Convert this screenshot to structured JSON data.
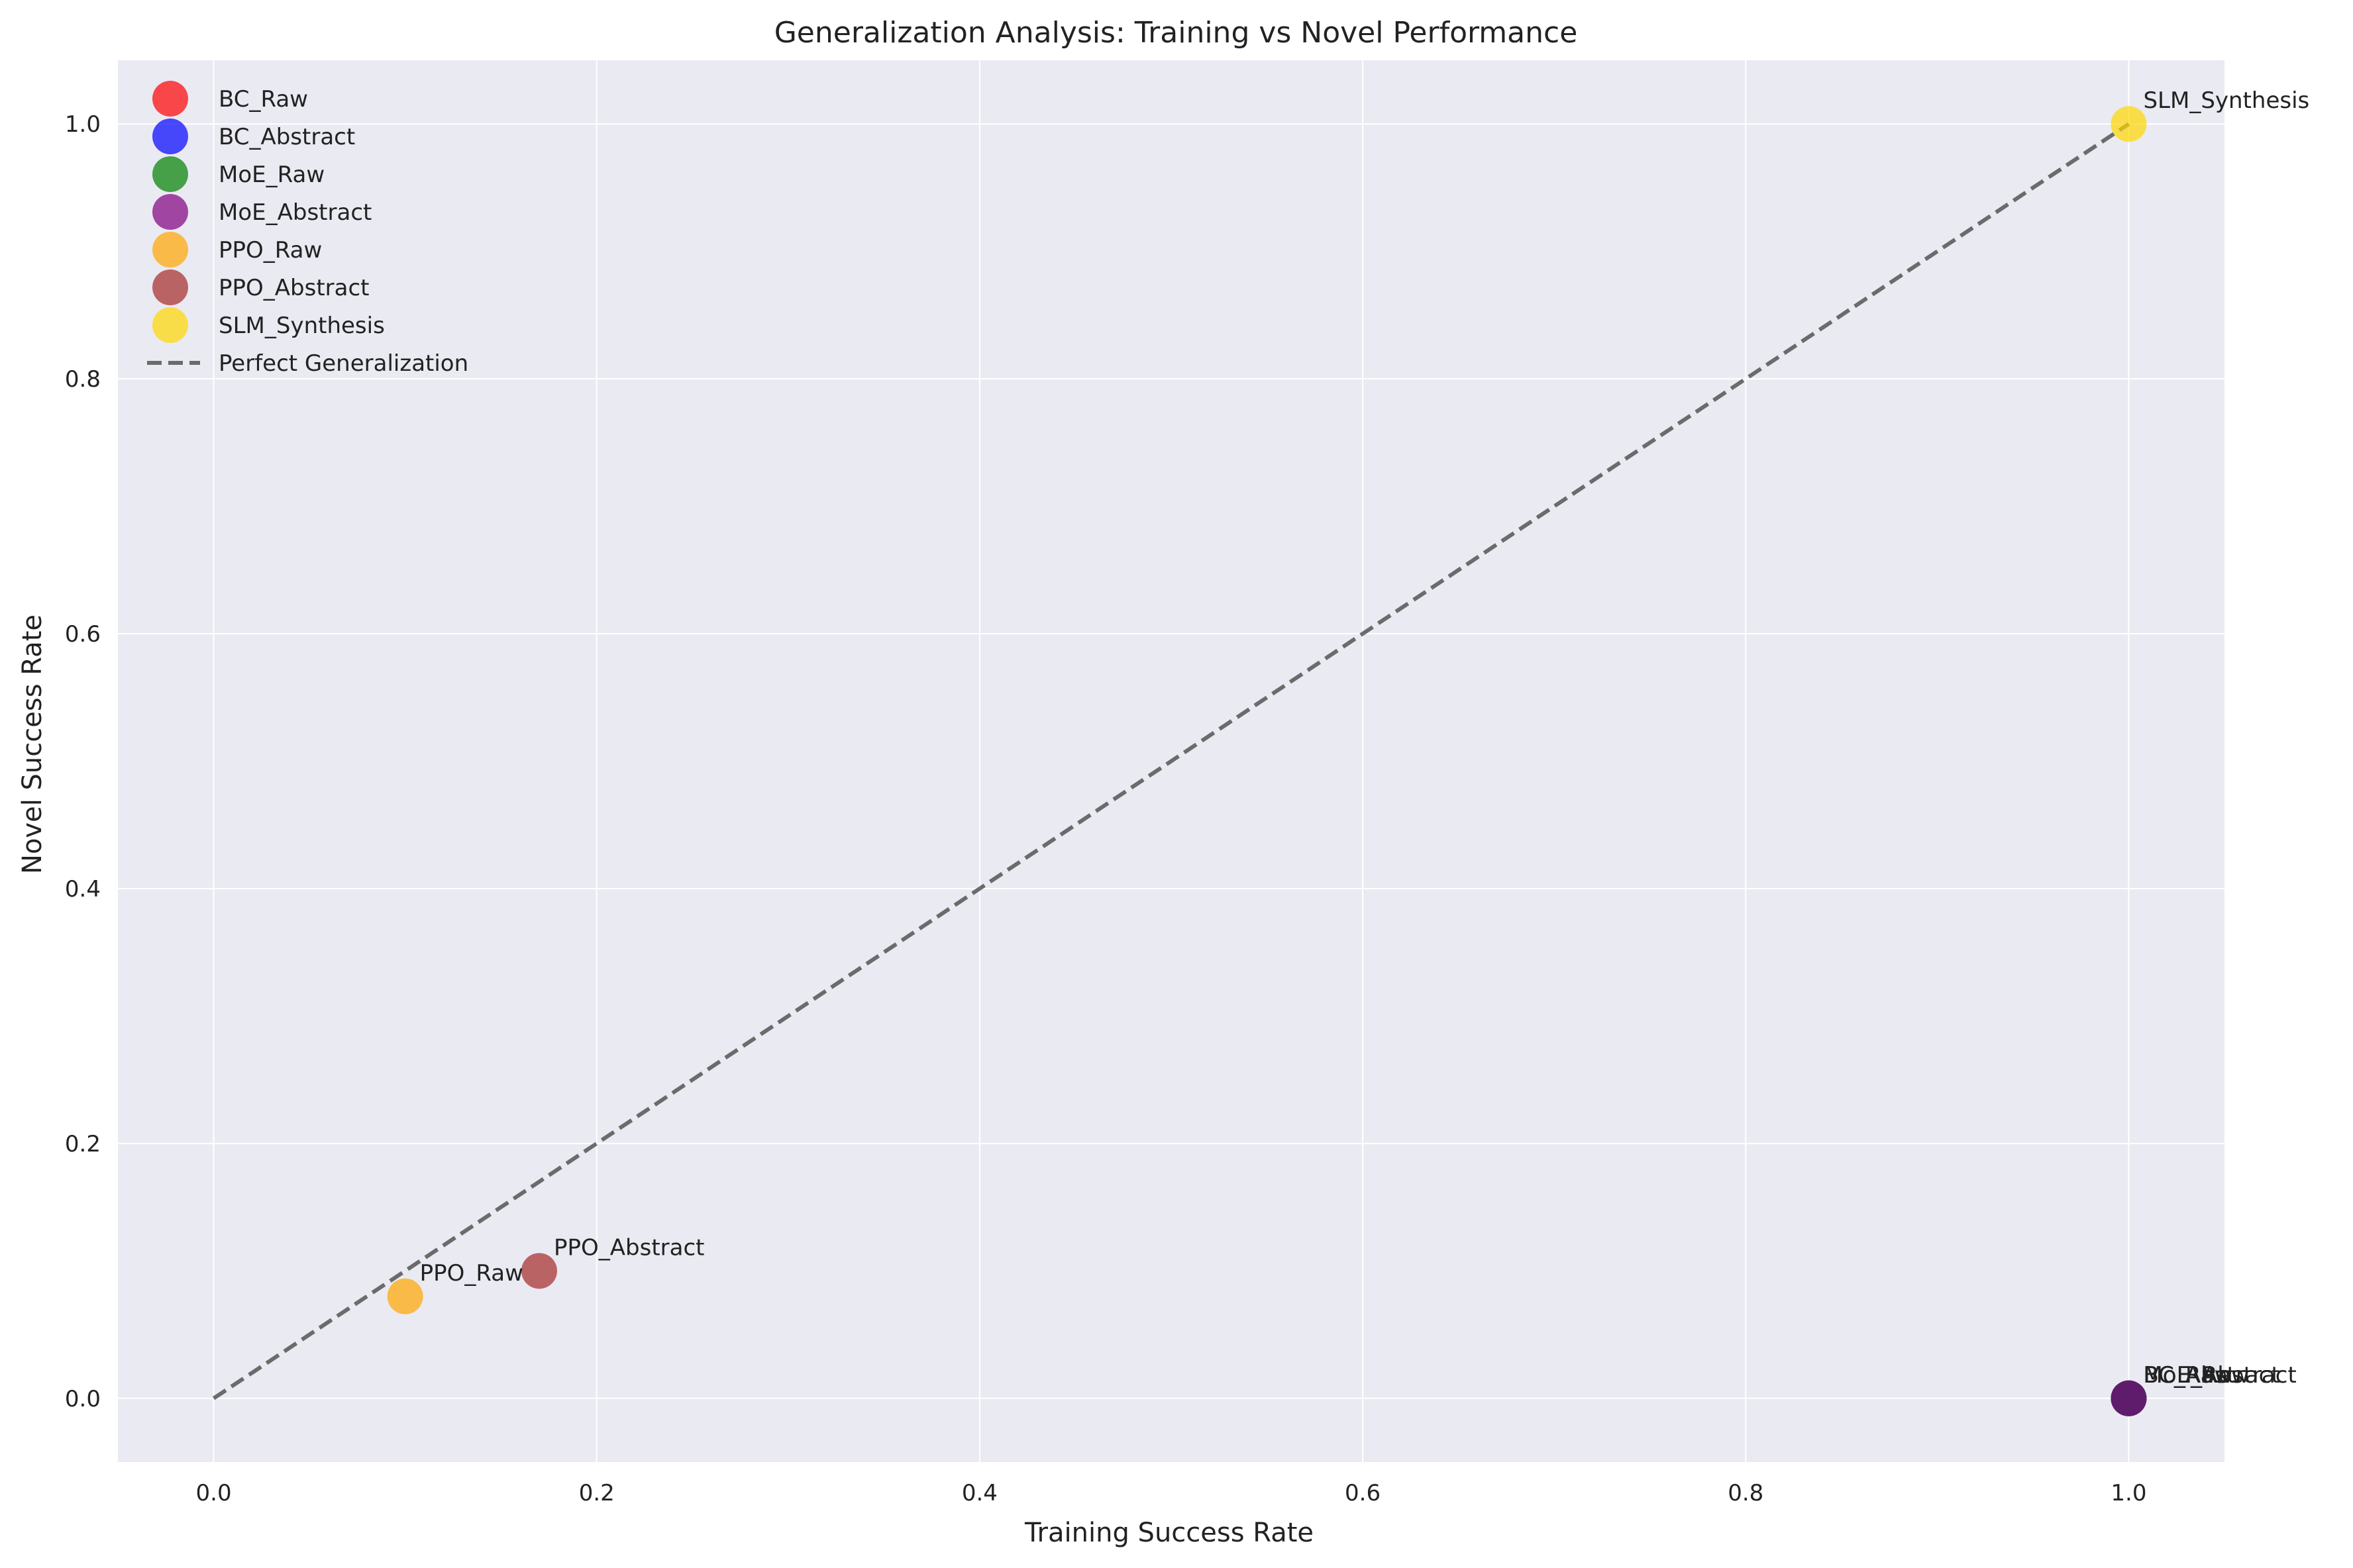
{
  "chart_data": {
    "type": "scatter",
    "title": "Generalization Analysis: Training vs Novel Performance",
    "xlabel": "Training Success Rate",
    "ylabel": "Novel Success Rate",
    "xlim": [
      -0.05,
      1.05
    ],
    "ylim": [
      -0.05,
      1.05
    ],
    "xticks": [
      "0.0",
      "0.2",
      "0.4",
      "0.6",
      "0.8",
      "1.0"
    ],
    "yticks": [
      "0.0",
      "0.2",
      "0.4",
      "0.6",
      "0.8",
      "1.0"
    ],
    "grid": true,
    "legend_position": "top-left",
    "series": [
      {
        "name": "BC_Raw",
        "color": "#ff0000",
        "x": 1.0,
        "y": 0.0
      },
      {
        "name": "BC_Abstract",
        "color": "#0000ff",
        "x": 1.0,
        "y": 0.0
      },
      {
        "name": "MoE_Raw",
        "color": "#008000",
        "x": 1.0,
        "y": 0.0
      },
      {
        "name": "MoE_Abstract",
        "color": "#800080",
        "x": 1.0,
        "y": 0.0
      },
      {
        "name": "PPO_Raw",
        "color": "#ffa500",
        "x": 0.1,
        "y": 0.08
      },
      {
        "name": "PPO_Abstract",
        "color": "#a52a2a",
        "x": 0.17,
        "y": 0.1
      },
      {
        "name": "SLM_Synthesis",
        "color": "#ffd700",
        "x": 1.0,
        "y": 1.0
      }
    ],
    "reference_line": {
      "name": "Perfect Generalization",
      "color": "#555555",
      "x": [
        0,
        1
      ],
      "y": [
        0,
        1
      ]
    }
  }
}
